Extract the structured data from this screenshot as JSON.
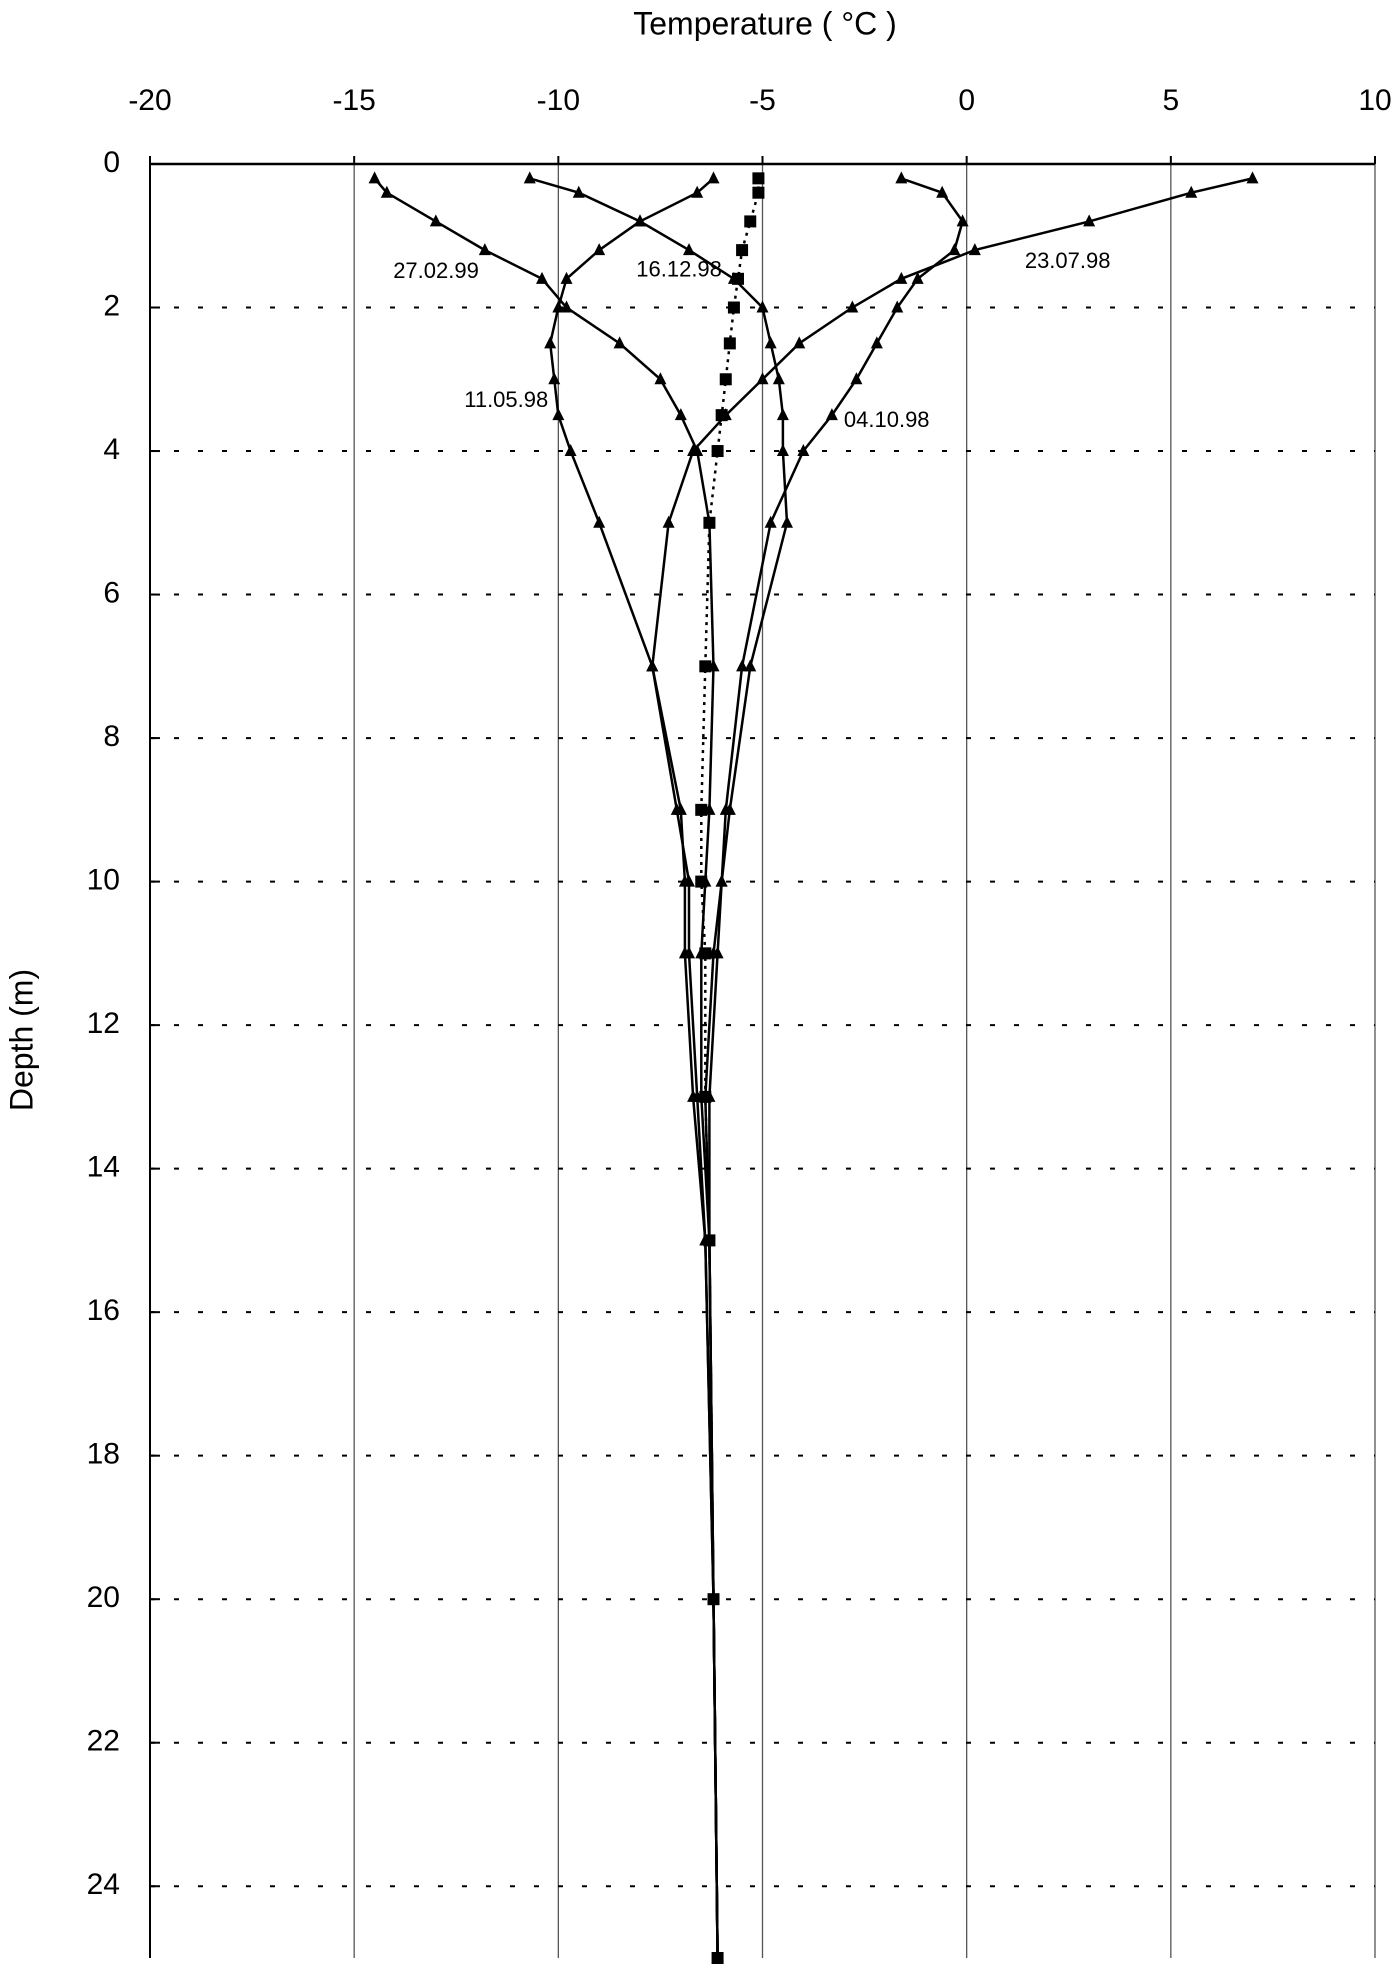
{
  "chart_data": {
    "type": "line",
    "xlabel": "Temperature ( °C )",
    "ylabel": "Depth (m)",
    "xlim": [
      -20,
      10
    ],
    "xticks": [
      -20,
      -15,
      -10,
      -5,
      0,
      5,
      10
    ],
    "ylim": [
      0,
      25
    ],
    "yticks": [
      0,
      2,
      4,
      6,
      8,
      10,
      12,
      14,
      16,
      18,
      20,
      22,
      24
    ],
    "y_inverted": true,
    "x_axis_position": "top",
    "grid": true,
    "series": [
      {
        "name": "23.07.98",
        "color": "#000000",
        "marker": "triangle",
        "line_style": "solid",
        "x": [
          7,
          5.5,
          3,
          0.2,
          -1.6,
          -2.8,
          -4.1,
          -5,
          -5.9,
          -6.7,
          -7.3,
          -7.7,
          -7.1,
          -6.8,
          -6.8,
          -6.6,
          -6.4,
          -6.2,
          -6.1
        ],
        "y": [
          0.2,
          0.4,
          0.8,
          1.2,
          1.6,
          2,
          2.5,
          3,
          3.5,
          4,
          5,
          7,
          9,
          10,
          11,
          13,
          15,
          20,
          25
        ]
      },
      {
        "name": "04.10.98",
        "color": "#000000",
        "marker": "triangle",
        "line_style": "solid",
        "x": [
          -1.6,
          -0.6,
          -0.1,
          -0.3,
          -1.2,
          -1.7,
          -2.2,
          -2.7,
          -3.3,
          -4,
          -4.8,
          -5.5,
          -5.9,
          -6,
          -6.1,
          -6.3,
          -6.3,
          -6.2,
          -6.1
        ],
        "y": [
          0.2,
          0.4,
          0.8,
          1.2,
          1.6,
          2,
          2.5,
          3,
          3.5,
          4,
          5,
          7,
          9,
          10,
          11,
          13,
          15,
          20,
          25
        ]
      },
      {
        "name": "16.12.98",
        "color": "#000000",
        "marker": "triangle",
        "line_style": "solid",
        "x": [
          -10.7,
          -9.5,
          -8,
          -6.8,
          -5.7,
          -5,
          -4.8,
          -4.6,
          -4.5,
          -4.5,
          -4.4,
          -5.3,
          -5.8,
          -6,
          -6.2,
          -6.4,
          -6.3,
          -6.2,
          -6.1
        ],
        "y": [
          0.2,
          0.4,
          0.8,
          1.2,
          1.6,
          2,
          2.5,
          3,
          3.5,
          4,
          5,
          7,
          9,
          10,
          11,
          13,
          15,
          20,
          25
        ]
      },
      {
        "name": "27.02.99",
        "color": "#000000",
        "marker": "triangle",
        "line_style": "solid",
        "x": [
          -14.5,
          -14.2,
          -13,
          -11.8,
          -10.4,
          -9.8,
          -8.5,
          -7.5,
          -7,
          -6.6,
          -6.3,
          -6.2,
          -6.3,
          -6.4,
          -6.5,
          -6.5,
          -6.3,
          -6.2,
          -6.1
        ],
        "y": [
          0.2,
          0.4,
          0.8,
          1.2,
          1.6,
          2,
          2.5,
          3,
          3.5,
          4,
          5,
          7,
          9,
          10,
          11,
          13,
          15,
          20,
          25
        ]
      },
      {
        "name": "11.05.98",
        "color": "#000000",
        "marker": "triangle",
        "line_style": "solid",
        "x": [
          -6.2,
          -6.6,
          -8,
          -9,
          -9.8,
          -10,
          -10.2,
          -10.1,
          -10,
          -9.7,
          -9,
          -7.7,
          -7,
          -6.9,
          -6.9,
          -6.7,
          -6.4,
          -6.2,
          -6.1
        ],
        "y": [
          0.2,
          0.4,
          0.8,
          1.2,
          1.6,
          2,
          2.5,
          3,
          3.5,
          4,
          5,
          7,
          9,
          10,
          11,
          13,
          15,
          20,
          25
        ]
      },
      {
        "color": "#000000",
        "marker": "square",
        "line_style": "dotted",
        "x": [
          -5.1,
          -5.1,
          -5.3,
          -5.5,
          -5.6,
          -5.7,
          -5.8,
          -5.9,
          -6,
          -6.1,
          -6.3,
          -6.4,
          -6.5,
          -6.5,
          -6.4,
          -6.4,
          -6.3,
          -6.2,
          -6.1
        ],
        "y": [
          0.2,
          0.4,
          0.8,
          1.2,
          1.6,
          2,
          2.5,
          3,
          3.5,
          4,
          5,
          7,
          9,
          10,
          11,
          13,
          15,
          20,
          25
        ]
      }
    ]
  }
}
